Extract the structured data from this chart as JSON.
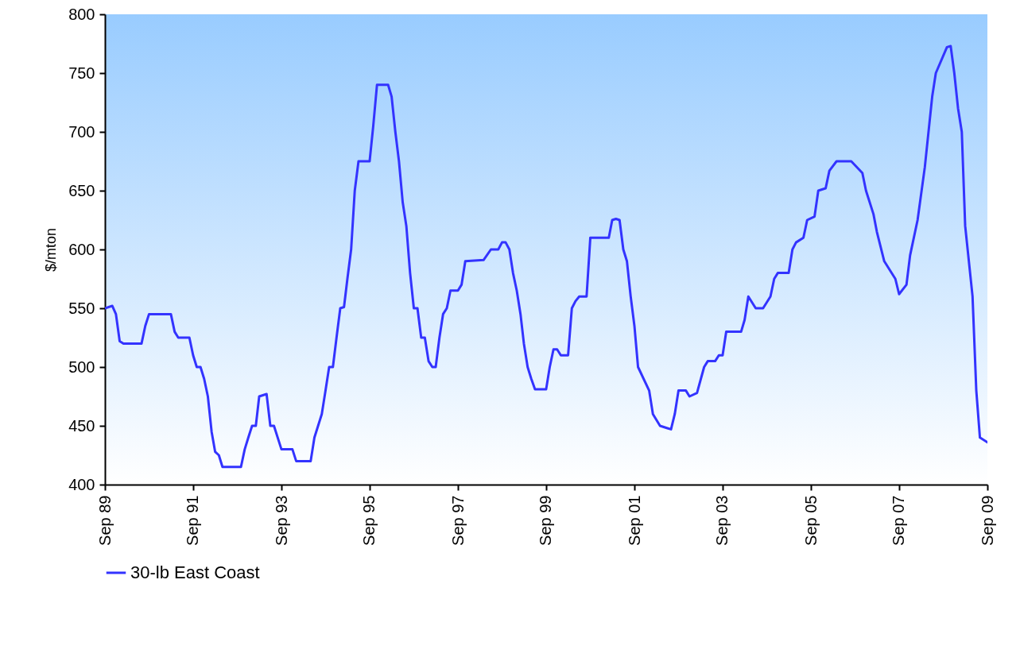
{
  "chart_data": {
    "type": "line",
    "ylabel": "$/mton",
    "legend": "bottom",
    "grid": false,
    "marker": "none",
    "line_style": "solid",
    "xlim": [
      "1989-09",
      "2009-09"
    ],
    "xticks": [
      {
        "value": "1989-09",
        "label": "Sep 89"
      },
      {
        "value": "1991-09",
        "label": "Sep 91"
      },
      {
        "value": "1993-09",
        "label": "Sep 93"
      },
      {
        "value": "1995-09",
        "label": "Sep 95"
      },
      {
        "value": "1997-09",
        "label": "Sep 97"
      },
      {
        "value": "1999-09",
        "label": "Sep 99"
      },
      {
        "value": "2001-09",
        "label": "Sep 01"
      },
      {
        "value": "2003-09",
        "label": "Sep 03"
      },
      {
        "value": "2005-09",
        "label": "Sep 05"
      },
      {
        "value": "2007-09",
        "label": "Sep 07"
      },
      {
        "value": "2009-09",
        "label": "Sep 09"
      }
    ],
    "ylim": [
      400,
      800
    ],
    "yticks": [
      400,
      450,
      500,
      550,
      600,
      650,
      700,
      750,
      800
    ],
    "x": [
      "1989-09",
      "1989-11",
      "1989-12",
      "1990-01",
      "1990-02",
      "1990-07",
      "1990-08",
      "1990-09",
      "1991-03",
      "1991-04",
      "1991-05",
      "1991-08",
      "1991-09",
      "1991-10",
      "1991-11",
      "1991-12",
      "1992-01",
      "1992-02",
      "1992-03",
      "1992-04",
      "1992-05",
      "1992-10",
      "1992-11",
      "1992-12",
      "1993-01",
      "1993-02",
      "1993-03",
      "1993-05",
      "1993-06",
      "1993-07",
      "1993-09",
      "1993-12",
      "1994-01",
      "1994-05",
      "1994-06",
      "1994-08",
      "1994-09",
      "1994-10",
      "1994-11",
      "1994-12",
      "1995-01",
      "1995-02",
      "1995-03",
      "1995-04",
      "1995-05",
      "1995-06",
      "1995-09",
      "1995-10",
      "1995-11",
      "1996-02",
      "1996-03",
      "1996-04",
      "1996-05",
      "1996-06",
      "1996-07",
      "1996-08",
      "1996-09",
      "1996-10",
      "1996-11",
      "1996-12",
      "1997-01",
      "1997-02",
      "1997-03",
      "1997-04",
      "1997-05",
      "1997-06",
      "1997-07",
      "1997-09",
      "1997-10",
      "1997-11",
      "1998-04",
      "1998-06",
      "1998-08",
      "1998-09",
      "1998-10",
      "1998-11",
      "1998-12",
      "1999-01",
      "1999-02",
      "1999-03",
      "1999-04",
      "1999-05",
      "1999-06",
      "1999-09",
      "1999-10",
      "1999-11",
      "1999-12",
      "2000-01",
      "2000-03",
      "2000-04",
      "2000-05",
      "2000-06",
      "2000-08",
      "2000-09",
      "2001-02",
      "2001-03",
      "2001-04",
      "2001-05",
      "2001-06",
      "2001-07",
      "2001-08",
      "2001-09",
      "2001-10",
      "2002-01",
      "2002-02",
      "2002-04",
      "2002-06",
      "2002-07",
      "2002-08",
      "2002-09",
      "2002-11",
      "2002-12",
      "2003-02",
      "2003-04",
      "2003-05",
      "2003-07",
      "2003-08",
      "2003-09",
      "2003-10",
      "2004-02",
      "2004-03",
      "2004-04",
      "2004-06",
      "2004-08",
      "2004-10",
      "2004-11",
      "2004-12",
      "2005-03",
      "2005-04",
      "2005-05",
      "2005-07",
      "2005-08",
      "2005-10",
      "2005-11",
      "2006-01",
      "2006-02",
      "2006-04",
      "2006-08",
      "2006-11",
      "2006-12",
      "2007-02",
      "2007-03",
      "2007-05",
      "2007-08",
      "2007-09",
      "2007-11",
      "2007-12",
      "2008-02",
      "2008-04",
      "2008-06",
      "2008-07",
      "2008-10",
      "2008-11",
      "2008-12",
      "2009-01",
      "2009-02",
      "2009-03",
      "2009-05",
      "2009-06",
      "2009-07",
      "2009-09"
    ],
    "series": [
      {
        "name": "30-lb East Coast",
        "color": "#3333ff",
        "values": [
          550,
          552,
          545,
          522,
          520,
          520,
          535,
          545,
          545,
          530,
          525,
          525,
          510,
          500,
          500,
          490,
          475,
          445,
          428,
          425,
          415,
          415,
          430,
          440,
          450,
          450,
          475,
          477,
          450,
          450,
          430,
          430,
          420,
          420,
          440,
          460,
          480,
          500,
          500,
          525,
          550,
          551,
          575,
          600,
          650,
          675,
          675,
          705,
          740,
          740,
          730,
          700,
          675,
          640,
          620,
          580,
          550,
          550,
          525,
          525,
          505,
          500,
          500,
          525,
          545,
          550,
          565,
          565,
          570,
          590,
          591,
          600,
          600,
          606,
          606,
          600,
          580,
          565,
          545,
          520,
          500,
          490,
          481,
          481,
          500,
          515,
          515,
          510,
          510,
          550,
          556,
          560,
          560,
          610,
          610,
          625,
          626,
          625,
          600,
          590,
          560,
          535,
          500,
          480,
          460,
          450,
          448,
          447,
          460,
          480,
          480,
          475,
          478,
          500,
          505,
          505,
          510,
          510,
          530,
          530,
          540,
          560,
          550,
          550,
          560,
          575,
          580,
          580,
          600,
          606,
          610,
          625,
          628,
          650,
          652,
          667,
          675,
          675,
          665,
          650,
          630,
          615,
          590,
          575,
          562,
          570,
          595,
          625,
          670,
          730,
          750,
          772,
          773,
          750,
          720,
          700,
          620,
          560,
          480,
          440,
          436
        ]
      }
    ]
  }
}
